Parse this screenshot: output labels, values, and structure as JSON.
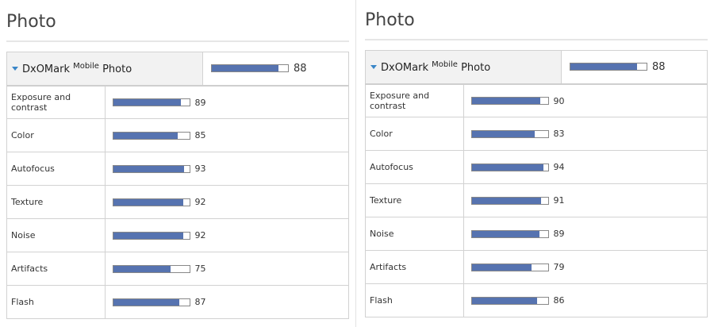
{
  "bar_color": "#5673b0",
  "panels": [
    {
      "title": "Photo",
      "header": {
        "pre": "DxOMark",
        "sup": "Mobile",
        "post": "Photo",
        "score": 88
      },
      "rows": [
        {
          "label": "Exposure and contrast",
          "score": 89
        },
        {
          "label": "Color",
          "score": 85
        },
        {
          "label": "Autofocus",
          "score": 93
        },
        {
          "label": "Texture",
          "score": 92
        },
        {
          "label": "Noise",
          "score": 92
        },
        {
          "label": "Artifacts",
          "score": 75
        },
        {
          "label": "Flash",
          "score": 87
        }
      ]
    },
    {
      "title": "Photo",
      "header": {
        "pre": "DxOMark",
        "sup": "Mobile",
        "post": "Photo",
        "score": 88
      },
      "rows": [
        {
          "label": "Exposure and contrast",
          "score": 90
        },
        {
          "label": "Color",
          "score": 83
        },
        {
          "label": "Autofocus",
          "score": 94
        },
        {
          "label": "Texture",
          "score": 91
        },
        {
          "label": "Noise",
          "score": 89
        },
        {
          "label": "Artifacts",
          "score": 79
        },
        {
          "label": "Flash",
          "score": 86
        }
      ]
    }
  ]
}
